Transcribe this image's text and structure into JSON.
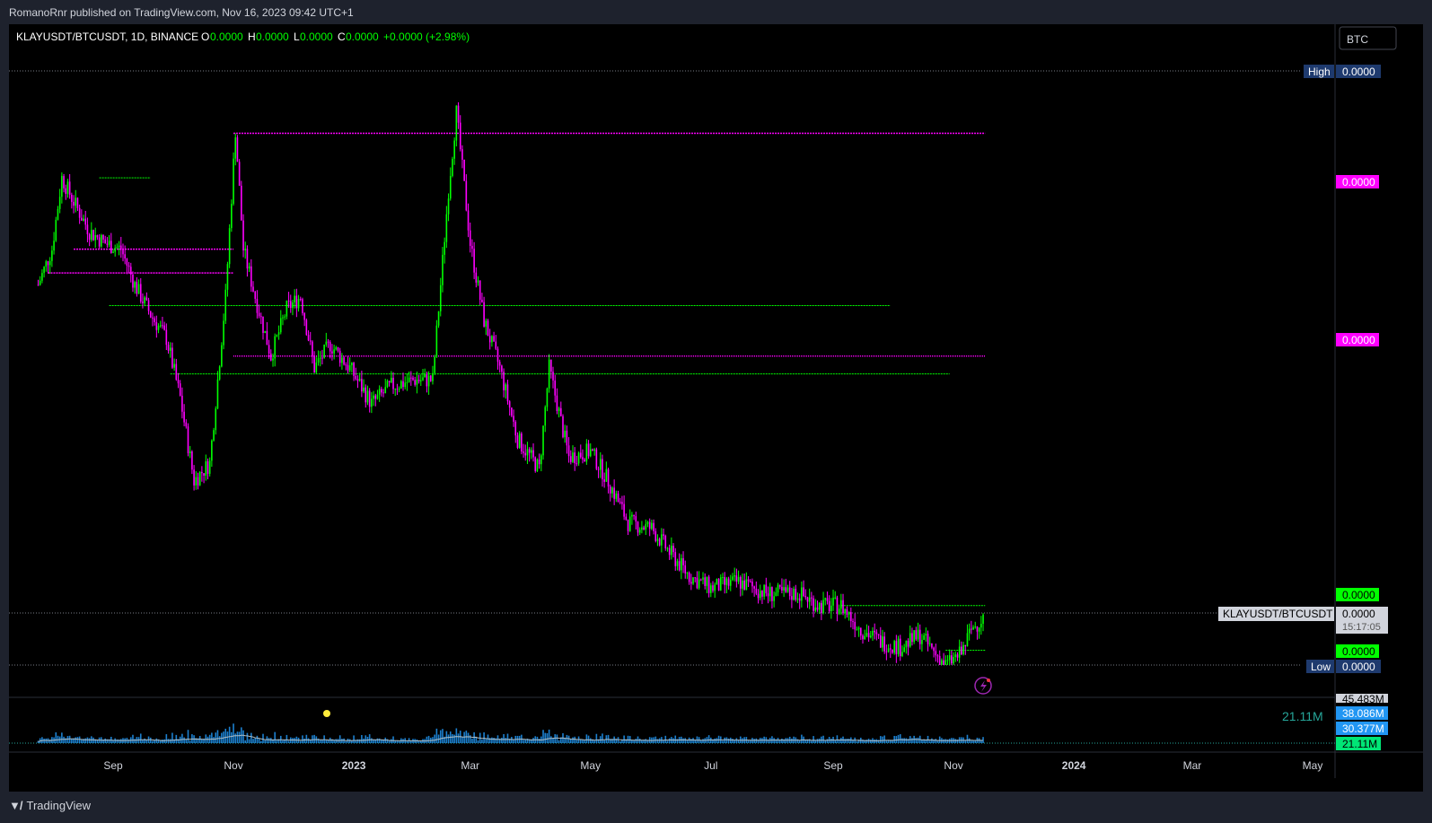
{
  "published_text": "RomanoRnr published on TradingView.com, Nov 16, 2023 09:42 UTC+1",
  "legend": {
    "symbol": "KLAYUSDT/BTCUSDT, 1D, BINANCE",
    "o_label": "O",
    "o_value": "0.0000",
    "h_label": "H",
    "h_value": "0.0000",
    "l_label": "L",
    "l_value": "0.0000",
    "c_label": "C",
    "c_value": "0.0000",
    "change": "+0.0000 (+2.98%)"
  },
  "currency_button": "BTC",
  "footer_brand": "TradingView",
  "colors": {
    "background": "#000000",
    "up": "#00ff00",
    "down": "#ff00ff",
    "volume": "#2196f3",
    "high_low_badge": "#1e3a6e",
    "magenta": "#ff00ff",
    "green": "#00ff00"
  },
  "chart_data": {
    "type": "line",
    "symbol": "KLAYUSDT/BTCUSDT",
    "timeframe": "1D",
    "exchange": "BINANCE",
    "x_ticks": [
      "Sep",
      "Nov",
      "2023",
      "Mar",
      "May",
      "Jul",
      "Sep",
      "Nov",
      "2024",
      "Mar",
      "May"
    ],
    "x_ticks_bold": [
      "2023",
      "2024"
    ],
    "x_tick_dates": [
      "2022-09-01",
      "2022-11-01",
      "2023-01-01",
      "2023-03-01",
      "2023-05-01",
      "2023-07-01",
      "2023-09-01",
      "2023-11-01",
      "2024-01-01",
      "2024-03-01",
      "2024-05-01"
    ],
    "y_range": [
      0,
      1
    ],
    "price_close_approx": [
      [
        "2022-07-25",
        0.64
      ],
      [
        "2022-08-01",
        0.7
      ],
      [
        "2022-08-06",
        0.82
      ],
      [
        "2022-08-12",
        0.78
      ],
      [
        "2022-08-20",
        0.73
      ],
      [
        "2022-08-28",
        0.71
      ],
      [
        "2022-09-05",
        0.7
      ],
      [
        "2022-09-12",
        0.64
      ],
      [
        "2022-09-20",
        0.59
      ],
      [
        "2022-09-28",
        0.55
      ],
      [
        "2022-10-05",
        0.45
      ],
      [
        "2022-10-12",
        0.31
      ],
      [
        "2022-10-20",
        0.34
      ],
      [
        "2022-10-28",
        0.62
      ],
      [
        "2022-11-02",
        0.9
      ],
      [
        "2022-11-06",
        0.7
      ],
      [
        "2022-11-12",
        0.62
      ],
      [
        "2022-11-20",
        0.52
      ],
      [
        "2022-11-28",
        0.6
      ],
      [
        "2022-12-05",
        0.62
      ],
      [
        "2022-12-12",
        0.5
      ],
      [
        "2022-12-20",
        0.54
      ],
      [
        "2022-12-30",
        0.5
      ],
      [
        "2023-01-10",
        0.44
      ],
      [
        "2023-01-20",
        0.47
      ],
      [
        "2023-02-01",
        0.48
      ],
      [
        "2023-02-10",
        0.48
      ],
      [
        "2023-02-18",
        0.8
      ],
      [
        "2023-02-22",
        0.93
      ],
      [
        "2023-03-01",
        0.71
      ],
      [
        "2023-03-08",
        0.58
      ],
      [
        "2023-03-16",
        0.5
      ],
      [
        "2023-03-25",
        0.38
      ],
      [
        "2023-04-05",
        0.33
      ],
      [
        "2023-04-10",
        0.5
      ],
      [
        "2023-04-20",
        0.35
      ],
      [
        "2023-05-01",
        0.36
      ],
      [
        "2023-05-10",
        0.31
      ],
      [
        "2023-05-20",
        0.24
      ],
      [
        "2023-06-01",
        0.23
      ],
      [
        "2023-06-10",
        0.19
      ],
      [
        "2023-06-20",
        0.15
      ],
      [
        "2023-07-01",
        0.13
      ],
      [
        "2023-07-15",
        0.14
      ],
      [
        "2023-07-30",
        0.12
      ],
      [
        "2023-08-15",
        0.12
      ],
      [
        "2023-08-25",
        0.1
      ],
      [
        "2023-09-05",
        0.1
      ],
      [
        "2023-09-15",
        0.06
      ],
      [
        "2023-09-25",
        0.04
      ],
      [
        "2023-10-05",
        0.03
      ],
      [
        "2023-10-15",
        0.05
      ],
      [
        "2023-10-20",
        0.03
      ],
      [
        "2023-10-28",
        0.0
      ],
      [
        "2023-11-05",
        0.02
      ],
      [
        "2023-11-10",
        0.06
      ],
      [
        "2023-11-16",
        0.08
      ]
    ],
    "levels": [
      {
        "price": 0.895,
        "from": "2022-11-01",
        "to": "2023-11-17",
        "color": "magenta"
      },
      {
        "price": 0.52,
        "from": "2022-11-01",
        "to": "2023-11-17",
        "color": "magenta"
      },
      {
        "price": 0.7,
        "from": "2022-08-12",
        "to": "2022-11-01",
        "color": "magenta"
      },
      {
        "price": 0.66,
        "from": "2022-07-30",
        "to": "2022-11-01",
        "color": "magenta"
      },
      {
        "price": 0.605,
        "from": "2022-08-30",
        "to": "2023-09-30",
        "color": "green"
      },
      {
        "price": 0.49,
        "from": "2022-09-30",
        "to": "2023-10-30",
        "color": "green"
      },
      {
        "price": 0.82,
        "from": "2022-08-25",
        "to": "2022-09-20",
        "color": "green"
      },
      {
        "price": 0.1,
        "from": "2023-09-05",
        "to": "2023-11-17",
        "color": "green"
      },
      {
        "price": 0.025,
        "from": "2023-10-28",
        "to": "2023-11-17",
        "color": "green"
      }
    ],
    "price_labels": {
      "high_tag": "High",
      "high_value": "0.0000",
      "magenta_1": "0.0000",
      "magenta_2": "0.0000",
      "green_upper": "0.0000",
      "symbol_tag": "KLAYUSDT/BTCUSDT",
      "current_value": "0.0000",
      "countdown": "15:17:05",
      "green_lower": "0.0000",
      "low_tag": "Low",
      "low_value": "0.0000"
    },
    "volume": {
      "current_label": "21.11M",
      "axis_labels": [
        "45.483M",
        "38.086M",
        "30.377M",
        "21.11M"
      ]
    }
  }
}
